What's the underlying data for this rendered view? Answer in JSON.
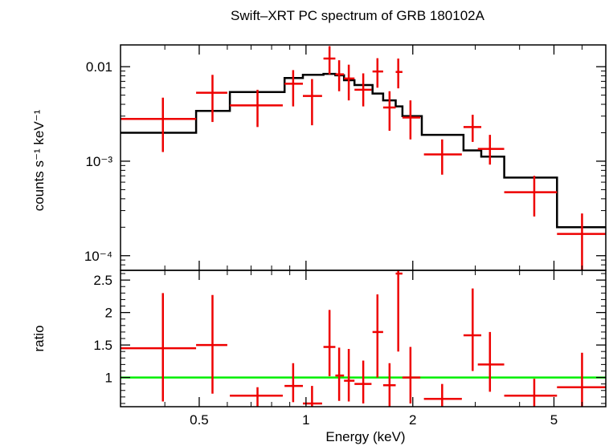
{
  "chart_data": {
    "title": "Swift–XRT PC spectrum of GRB 180102A",
    "xlabel": "Energy (keV)",
    "x_scale": "log",
    "xlim": [
      0.3,
      7.0
    ],
    "x_ticks": [
      {
        "value": 0.5,
        "label": "0.5"
      },
      {
        "value": 1,
        "label": "1"
      },
      {
        "value": 2,
        "label": "2"
      },
      {
        "value": 5,
        "label": "5"
      }
    ],
    "colors": {
      "data": "#ee0000",
      "model": "#000000",
      "ratio_line": "#00ee00",
      "axes": "#000000"
    },
    "panels": [
      {
        "name": "spectrum",
        "type": "scatter",
        "ylabel": "counts s⁻¹ keV⁻¹",
        "y_scale": "log",
        "ylim": [
          7e-05,
          0.017
        ],
        "y_ticks": [
          {
            "value": 0.01,
            "label": "0.01"
          },
          {
            "value": 0.001,
            "label": "10⁻³"
          },
          {
            "value": 0.0001,
            "label": "10⁻⁴"
          }
        ],
        "series": [
          {
            "type": "errorbar",
            "points": [
              {
                "x": 0.395,
                "xlo": 0.3,
                "xhi": 0.49,
                "y": 0.0028,
                "ylo": 0.00125,
                "yhi": 0.0047
              },
              {
                "x": 0.545,
                "xlo": 0.49,
                "xhi": 0.6,
                "y": 0.0053,
                "ylo": 0.0026,
                "yhi": 0.0082
              },
              {
                "x": 0.73,
                "xlo": 0.61,
                "xhi": 0.86,
                "y": 0.0039,
                "ylo": 0.0023,
                "yhi": 0.0057
              },
              {
                "x": 0.92,
                "xlo": 0.87,
                "xhi": 0.98,
                "y": 0.0066,
                "ylo": 0.0038,
                "yhi": 0.0092
              },
              {
                "x": 1.04,
                "xlo": 0.98,
                "xhi": 1.11,
                "y": 0.0049,
                "ylo": 0.0024,
                "yhi": 0.0074
              },
              {
                "x": 1.165,
                "xlo": 1.12,
                "xhi": 1.21,
                "y": 0.0122,
                "ylo": 0.0083,
                "yhi": 0.0165
              },
              {
                "x": 1.24,
                "xlo": 1.21,
                "xhi": 1.28,
                "y": 0.0083,
                "ylo": 0.0055,
                "yhi": 0.0117
              },
              {
                "x": 1.32,
                "xlo": 1.28,
                "xhi": 1.37,
                "y": 0.0075,
                "ylo": 0.0044,
                "yhi": 0.0105
              },
              {
                "x": 1.45,
                "xlo": 1.37,
                "xhi": 1.53,
                "y": 0.0057,
                "ylo": 0.0038,
                "yhi": 0.0085
              },
              {
                "x": 1.59,
                "xlo": 1.54,
                "xhi": 1.65,
                "y": 0.0089,
                "ylo": 0.006,
                "yhi": 0.0123
              },
              {
                "x": 1.72,
                "xlo": 1.65,
                "xhi": 1.79,
                "y": 0.0037,
                "ylo": 0.0021,
                "yhi": 0.0055
              },
              {
                "x": 1.82,
                "xlo": 1.79,
                "xhi": 1.87,
                "y": 0.0088,
                "ylo": 0.0059,
                "yhi": 0.0122
              },
              {
                "x": 1.97,
                "xlo": 1.87,
                "xhi": 2.1,
                "y": 0.0029,
                "ylo": 0.0017,
                "yhi": 0.0044
              },
              {
                "x": 2.42,
                "xlo": 2.15,
                "xhi": 2.75,
                "y": 0.00118,
                "ylo": 0.00072,
                "yhi": 0.0017
              },
              {
                "x": 2.95,
                "xlo": 2.78,
                "xhi": 3.12,
                "y": 0.0023,
                "ylo": 0.0016,
                "yhi": 0.0031
              },
              {
                "x": 3.3,
                "xlo": 3.05,
                "xhi": 3.62,
                "y": 0.00135,
                "ylo": 0.00092,
                "yhi": 0.0019
              },
              {
                "x": 4.4,
                "xlo": 3.62,
                "xhi": 5.1,
                "y": 0.00047,
                "ylo": 0.00026,
                "yhi": 0.0007
              },
              {
                "x": 6.0,
                "xlo": 5.1,
                "xhi": 7.0,
                "y": 0.00017,
                "ylo": 6.5e-05,
                "yhi": 0.00028
              }
            ]
          },
          {
            "type": "step",
            "edges": [
              0.3,
              0.49,
              0.61,
              0.87,
              0.98,
              1.12,
              1.21,
              1.28,
              1.37,
              1.54,
              1.65,
              1.79,
              1.87,
              2.12,
              2.78,
              3.12,
              3.62,
              5.1,
              7.0
            ],
            "values": [
              0.002,
              0.0034,
              0.0054,
              0.0076,
              0.0082,
              0.0084,
              0.0081,
              0.0072,
              0.0064,
              0.0052,
              0.0044,
              0.0038,
              0.003,
              0.0019,
              0.0013,
              0.00112,
              0.00067,
              0.0002
            ]
          }
        ]
      },
      {
        "name": "ratio",
        "type": "scatter",
        "ylabel": "ratio",
        "y_scale": "linear",
        "ylim": [
          0.55,
          2.65
        ],
        "y_ticks": [
          {
            "value": 1,
            "label": "1"
          },
          {
            "value": 1.5,
            "label": "1.5"
          },
          {
            "value": 2,
            "label": "2"
          },
          {
            "value": 2.5,
            "label": "2.5"
          }
        ],
        "reference_line": 1,
        "series": [
          {
            "type": "errorbar",
            "points": [
              {
                "x": 0.395,
                "xlo": 0.3,
                "xhi": 0.49,
                "y": 1.45,
                "ylo": 0.63,
                "yhi": 2.3
              },
              {
                "x": 0.545,
                "xlo": 0.49,
                "xhi": 0.6,
                "y": 1.5,
                "ylo": 0.75,
                "yhi": 2.27
              },
              {
                "x": 0.73,
                "xlo": 0.61,
                "xhi": 0.86,
                "y": 0.72,
                "ylo": 0.55,
                "yhi": 0.85
              },
              {
                "x": 0.92,
                "xlo": 0.87,
                "xhi": 0.98,
                "y": 0.87,
                "ylo": 0.62,
                "yhi": 1.22
              },
              {
                "x": 1.04,
                "xlo": 0.98,
                "xhi": 1.11,
                "y": 0.6,
                "ylo": 0.55,
                "yhi": 0.87
              },
              {
                "x": 1.165,
                "xlo": 1.12,
                "xhi": 1.21,
                "y": 1.47,
                "ylo": 1.02,
                "yhi": 2.04
              },
              {
                "x": 1.24,
                "xlo": 1.21,
                "xhi": 1.28,
                "y": 1.03,
                "ylo": 0.64,
                "yhi": 1.46
              },
              {
                "x": 1.32,
                "xlo": 1.28,
                "xhi": 1.37,
                "y": 0.95,
                "ylo": 0.63,
                "yhi": 1.44
              },
              {
                "x": 1.45,
                "xlo": 1.37,
                "xhi": 1.53,
                "y": 0.9,
                "ylo": 0.6,
                "yhi": 1.26
              },
              {
                "x": 1.59,
                "xlo": 1.54,
                "xhi": 1.65,
                "y": 1.7,
                "ylo": 1.0,
                "yhi": 2.28
              },
              {
                "x": 1.72,
                "xlo": 1.65,
                "xhi": 1.79,
                "y": 0.88,
                "ylo": 0.55,
                "yhi": 1.22
              },
              {
                "x": 1.82,
                "xlo": 1.79,
                "xhi": 1.87,
                "y": 2.6,
                "ylo": 1.4,
                "yhi": 2.65
              },
              {
                "x": 1.97,
                "xlo": 1.87,
                "xhi": 2.1,
                "y": 1.0,
                "ylo": 0.6,
                "yhi": 1.47
              },
              {
                "x": 2.42,
                "xlo": 2.15,
                "xhi": 2.75,
                "y": 0.67,
                "ylo": 0.55,
                "yhi": 0.9
              },
              {
                "x": 2.95,
                "xlo": 2.78,
                "xhi": 3.12,
                "y": 1.65,
                "ylo": 1.1,
                "yhi": 2.37
              },
              {
                "x": 3.3,
                "xlo": 3.05,
                "xhi": 3.62,
                "y": 1.2,
                "ylo": 0.78,
                "yhi": 1.7
              },
              {
                "x": 4.4,
                "xlo": 3.62,
                "xhi": 5.1,
                "y": 0.72,
                "ylo": 0.55,
                "yhi": 0.98
              },
              {
                "x": 6.0,
                "xlo": 5.1,
                "xhi": 7.0,
                "y": 0.85,
                "ylo": 0.55,
                "yhi": 1.38
              }
            ]
          }
        ]
      }
    ]
  }
}
